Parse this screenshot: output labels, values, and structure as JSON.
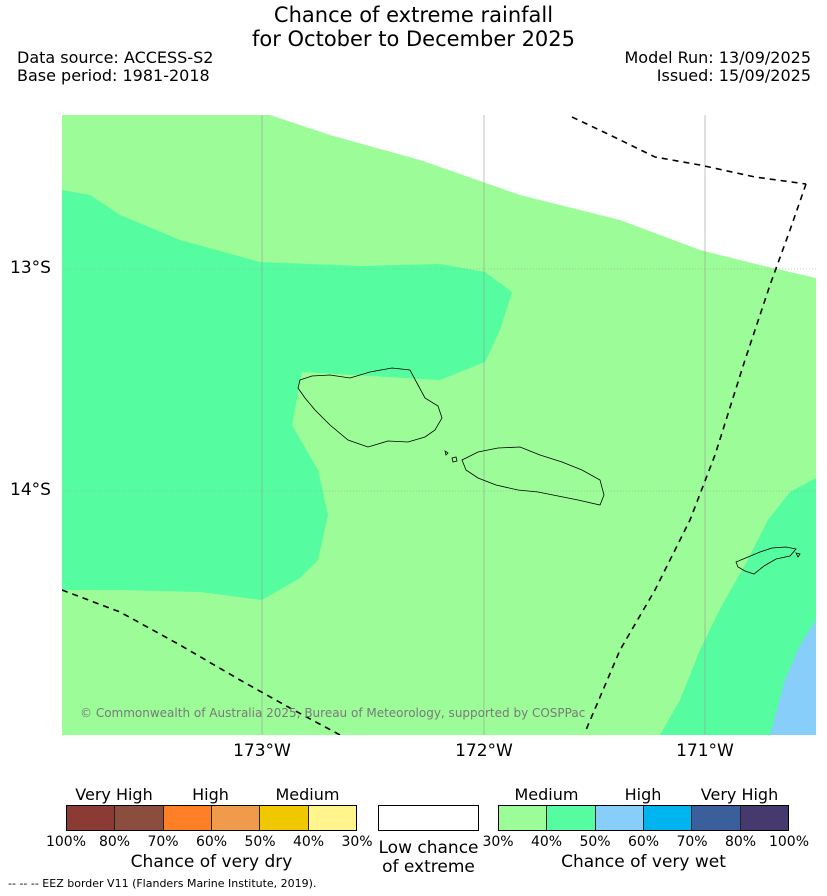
{
  "title": {
    "line1": "Chance of extreme rainfall",
    "line2": "for October to December 2025"
  },
  "meta": {
    "data_source": "Data source: ACCESS-S2",
    "base_period": "Base period: 1981-2018",
    "model_run": "Model Run: 13/09/2025",
    "issued": "Issued: 15/09/2025"
  },
  "map": {
    "lat_labels": [
      "13°S",
      "14°S"
    ],
    "lon_labels": [
      "173°W",
      "172°W",
      "171°W"
    ],
    "copyright": "© Commonwealth of Australia 2025, Bureau of Meteorology, supported by COSPPac",
    "colors": {
      "medium_wet_30_40": "#9cfc98",
      "medium_wet_40_50": "#56fca0",
      "high_wet_50_60": "#87cefa"
    }
  },
  "legend": {
    "dry": {
      "group_labels": [
        "Very High",
        "High",
        "Medium"
      ],
      "ticks": [
        "100%",
        "80%",
        "70%",
        "60%",
        "50%",
        "40%",
        "30%"
      ],
      "colors": [
        "#8b3a34",
        "#8b4d3e",
        "#ff7f27",
        "#f09b4c",
        "#f0c800",
        "#fff58c"
      ],
      "caption": "Chance of very dry"
    },
    "low": {
      "caption_line1": "Low chance",
      "caption_line2": "of extreme",
      "color": "#ffffff"
    },
    "wet": {
      "group_labels": [
        "Medium",
        "High",
        "Very High"
      ],
      "ticks": [
        "30%",
        "40%",
        "50%",
        "60%",
        "70%",
        "80%",
        "100%"
      ],
      "colors": [
        "#9cfc98",
        "#56fca0",
        "#87cefa",
        "#00b4f0",
        "#3a5f9c",
        "#45396e"
      ],
      "caption": "Chance of very wet"
    }
  },
  "footnote": "--  --  -- EEZ border V11 (Flanders Marine Institute, 2019)."
}
